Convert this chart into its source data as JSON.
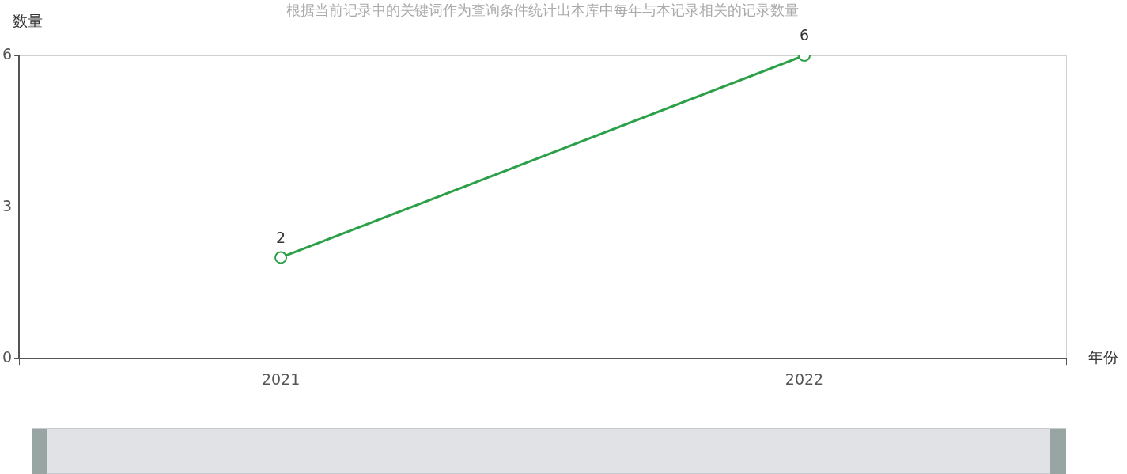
{
  "chart_data": {
    "type": "line",
    "title": "根据当前记录中的关键词作为查询条件统计出本库中每年与本记录相关的记录数量",
    "xlabel": "年份",
    "ylabel": "数量",
    "categories": [
      "2021",
      "2022"
    ],
    "series": [
      {
        "color": "#2ca048",
        "values": [
          2,
          6
        ]
      }
    ],
    "ylim": [
      0,
      6
    ],
    "yticks": [
      0,
      3,
      6
    ],
    "grid": true,
    "legend": false,
    "marker": "circle",
    "line_style": "solid",
    "data_labels": true
  }
}
